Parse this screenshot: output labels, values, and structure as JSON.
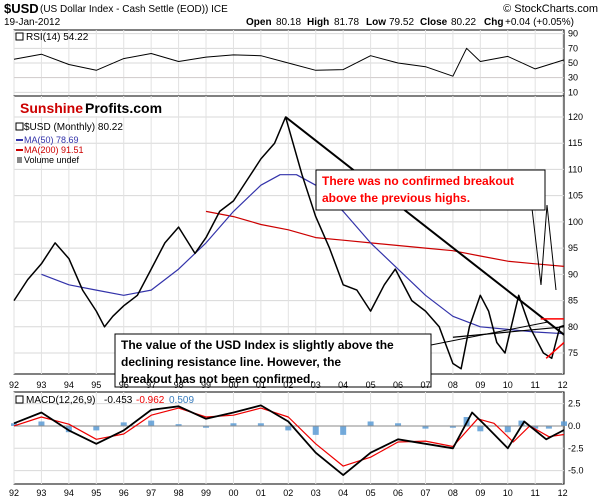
{
  "header": {
    "symbol": "$USD",
    "description": "(US Dollar Index - Cash Settle (EOD)) ICE",
    "watermark": "© StockCharts.com",
    "date": "19-Jan-2012",
    "open_label": "Open",
    "open": "80.18",
    "high_label": "High",
    "high": "81.78",
    "low_label": "Low",
    "low": "79.52",
    "close_label": "Close",
    "close": "80.22",
    "chg_label": "Chg",
    "chg": "+0.04 (+0.05%)"
  },
  "colors": {
    "price": "#000000",
    "ma50": "#3333aa",
    "ma200": "#cc0000",
    "macd": "#000000",
    "signal": "#ee0000",
    "hist": "#5b9bd5",
    "rsi_fill": "#8c6a6a",
    "logo_red": "#cc0000",
    "annotation_red": "#ff0000"
  },
  "logo": {
    "part1": "Sunshine",
    "part2": "Profits.com"
  },
  "rsi_panel": {
    "label": "RSI(14) 54.22",
    "ticks": [
      "90",
      "70",
      "50",
      "30",
      "10"
    ],
    "tick_values": [
      90,
      70,
      50,
      30,
      10
    ]
  },
  "price_panel": {
    "legend": {
      "price": "$USD (Monthly) 80.22",
      "ma50": "MA(50) 78.69",
      "ma200": "MA(200) 91.51",
      "volume": "Volume undef"
    },
    "ticks": [
      "120",
      "115",
      "110",
      "105",
      "100",
      "95",
      "90",
      "85",
      "80",
      "75"
    ],
    "tick_values": [
      120,
      115,
      110,
      105,
      100,
      95,
      90,
      85,
      80,
      75
    ]
  },
  "annotations": {
    "red_box": [
      "There was no confirmed breakout",
      "above the previous highs."
    ],
    "black_box": [
      "The value of the USD Index is slightly above the",
      "declining resistance line. However, the",
      "breakout has not been confirmed."
    ]
  },
  "macd_panel": {
    "label_prefix": "MACD(12,26,9)",
    "macd_value": "-0.453",
    "signal_value": "-0.962",
    "hist_value": "0.509",
    "ticks": [
      "2.5",
      "0.0",
      "-2.5",
      "-5.0"
    ],
    "tick_values": [
      2.5,
      0.0,
      -2.5,
      -5.0
    ]
  },
  "x_axis": {
    "labels": [
      "92",
      "93",
      "94",
      "95",
      "96",
      "97",
      "98",
      "99",
      "00",
      "01",
      "02",
      "03",
      "04",
      "05",
      "06",
      "07",
      "08",
      "09",
      "10",
      "11",
      "12"
    ]
  },
  "chart_data": {
    "type": "line",
    "title": "$USD (US Dollar Index - Cash Settle (EOD)) ICE",
    "x_range": [
      1992.0,
      2012.05
    ],
    "y_range_price": [
      71,
      124
    ],
    "y_range_rsi": [
      5,
      95
    ],
    "y_range_macd": [
      -6.5,
      3.8
    ],
    "series": [
      {
        "name": "$USD (Monthly) 80.22",
        "x": [
          1992.0,
          1992.5,
          1993.0,
          1993.5,
          1994.0,
          1994.5,
          1995.0,
          1995.3,
          1995.6,
          1996.0,
          1996.5,
          1997.0,
          1997.5,
          1998.0,
          1998.6,
          1999.0,
          1999.5,
          2000.0,
          2000.5,
          2001.0,
          2001.5,
          2001.9,
          2002.5,
          2003.0,
          2003.5,
          2004.0,
          2004.5,
          2005.0,
          2005.5,
          2005.9,
          2006.5,
          2007.0,
          2007.5,
          2008.0,
          2008.3,
          2008.6,
          2009.0,
          2009.3,
          2009.6,
          2009.9,
          2010.4,
          2010.8,
          2011.0,
          2011.3,
          2011.6,
          2011.9,
          2012.05
        ],
        "values": [
          85,
          89,
          92,
          96,
          93,
          87,
          83,
          80,
          82,
          84,
          86,
          91,
          96,
          99,
          94,
          97,
          102,
          104,
          108,
          112,
          115,
          120,
          109,
          101,
          95,
          88,
          87,
          83,
          88,
          91,
          85,
          83,
          80,
          73,
          72,
          80,
          86,
          83,
          77,
          75,
          86,
          80,
          78,
          75,
          74,
          80,
          80.22
        ]
      },
      {
        "name": "MA(50) 78.69",
        "x": [
          1993.0,
          1994.0,
          1995.0,
          1996.0,
          1997.0,
          1998.0,
          1999.0,
          2000.0,
          2001.0,
          2001.7,
          2002.3,
          2003.0,
          2004.0,
          2005.0,
          2006.0,
          2007.0,
          2008.0,
          2009.0,
          2010.0,
          2011.0,
          2012.05
        ],
        "values": [
          90,
          88,
          87,
          86,
          87,
          91,
          96,
          102,
          107,
          109,
          109,
          107,
          102,
          96,
          91,
          86,
          82,
          80,
          79.5,
          79,
          78.69
        ]
      },
      {
        "name": "MA(200) 91.51",
        "x": [
          1999.0,
          2000.0,
          2001.0,
          2002.0,
          2003.0,
          2004.0,
          2005.0,
          2006.0,
          2007.0,
          2008.0,
          2009.0,
          2010.0,
          2011.0,
          2012.05
        ],
        "values": [
          102,
          101,
          99.5,
          98.5,
          97,
          96.5,
          96,
          95.5,
          95,
          94.5,
          93.5,
          92.5,
          92,
          91.51
        ]
      },
      {
        "name": "RSI(14) 54.22",
        "x": [
          1992.0,
          1993.0,
          1994.0,
          1995.0,
          1996.0,
          1997.0,
          1998.0,
          1999.0,
          2000.0,
          2001.0,
          2002.0,
          2003.0,
          2004.0,
          2005.0,
          2006.0,
          2007.0,
          2008.0,
          2008.5,
          2009.0,
          2010.0,
          2011.0,
          2012.05
        ],
        "values": [
          55,
          62,
          48,
          40,
          56,
          63,
          52,
          58,
          61,
          60,
          50,
          40,
          41,
          60,
          50,
          45,
          32,
          70,
          52,
          59,
          42,
          54.22
        ]
      },
      {
        "name": "MACD(12,26,9) -0.453",
        "x": [
          1992.0,
          1993.0,
          1994.0,
          1995.0,
          1996.0,
          1997.0,
          1998.0,
          1999.0,
          2000.0,
          2001.0,
          2002.0,
          2003.0,
          2004.0,
          2005.0,
          2006.0,
          2007.0,
          2008.0,
          2008.7,
          2009.2,
          2010.0,
          2010.6,
          2011.4,
          2012.05
        ],
        "values": [
          0.3,
          1.5,
          -0.5,
          -2.0,
          -0.5,
          1.8,
          2.2,
          0.8,
          1.5,
          2.3,
          0.5,
          -3.0,
          -5.5,
          -3.0,
          -1.5,
          -2.0,
          -2.5,
          1.5,
          0.0,
          -2.5,
          0.5,
          -1.5,
          -0.453
        ]
      },
      {
        "name": "Signal -0.962",
        "x": [
          1992.0,
          1993.0,
          1994.0,
          1995.0,
          1996.0,
          1997.0,
          1998.0,
          1999.0,
          2000.0,
          2001.0,
          2002.0,
          2003.0,
          2004.0,
          2005.0,
          2006.0,
          2007.0,
          2008.0,
          2008.9,
          2009.5,
          2010.2,
          2010.8,
          2011.5,
          2012.05
        ],
        "values": [
          0.0,
          1.0,
          0.2,
          -1.5,
          -0.9,
          1.2,
          2.0,
          1.0,
          1.2,
          2.0,
          1.0,
          -2.0,
          -4.5,
          -3.5,
          -1.8,
          -1.7,
          -2.3,
          0.8,
          0.3,
          -1.8,
          0.0,
          -1.2,
          -0.962
        ]
      },
      {
        "name": "Histogram 0.509",
        "x": [
          1992.0,
          1993.0,
          1994.0,
          1995.0,
          1996.0,
          1997.0,
          1998.0,
          1999.0,
          2000.0,
          2001.0,
          2002.0,
          2003.0,
          2004.0,
          2005.0,
          2006.0,
          2007.0,
          2008.0,
          2008.5,
          2009.0,
          2010.0,
          2010.5,
          2011.0,
          2011.5,
          2012.05
        ],
        "values": [
          0.3,
          0.5,
          -0.7,
          -0.5,
          0.4,
          0.6,
          0.2,
          -0.2,
          0.3,
          0.3,
          -0.5,
          -1.0,
          -1.0,
          0.5,
          0.3,
          -0.3,
          -0.2,
          1.0,
          -0.6,
          -0.7,
          0.6,
          -0.3,
          -0.3,
          0.509
        ]
      }
    ],
    "trendlines": [
      {
        "name": "declining-resistance",
        "x": [
          2001.9,
          2012.05
        ],
        "values": [
          120,
          78.5
        ]
      },
      {
        "name": "rising-support",
        "x": [
          2008.0,
          2012.05
        ],
        "values": [
          78,
          80
        ]
      },
      {
        "name": "previous-highs",
        "x": [
          2011.2,
          2012.05
        ],
        "values": [
          81.5,
          81.5
        ]
      },
      {
        "name": "short-support",
        "x": [
          2011.4,
          2012.05
        ],
        "values": [
          74,
          77
        ]
      }
    ]
  }
}
